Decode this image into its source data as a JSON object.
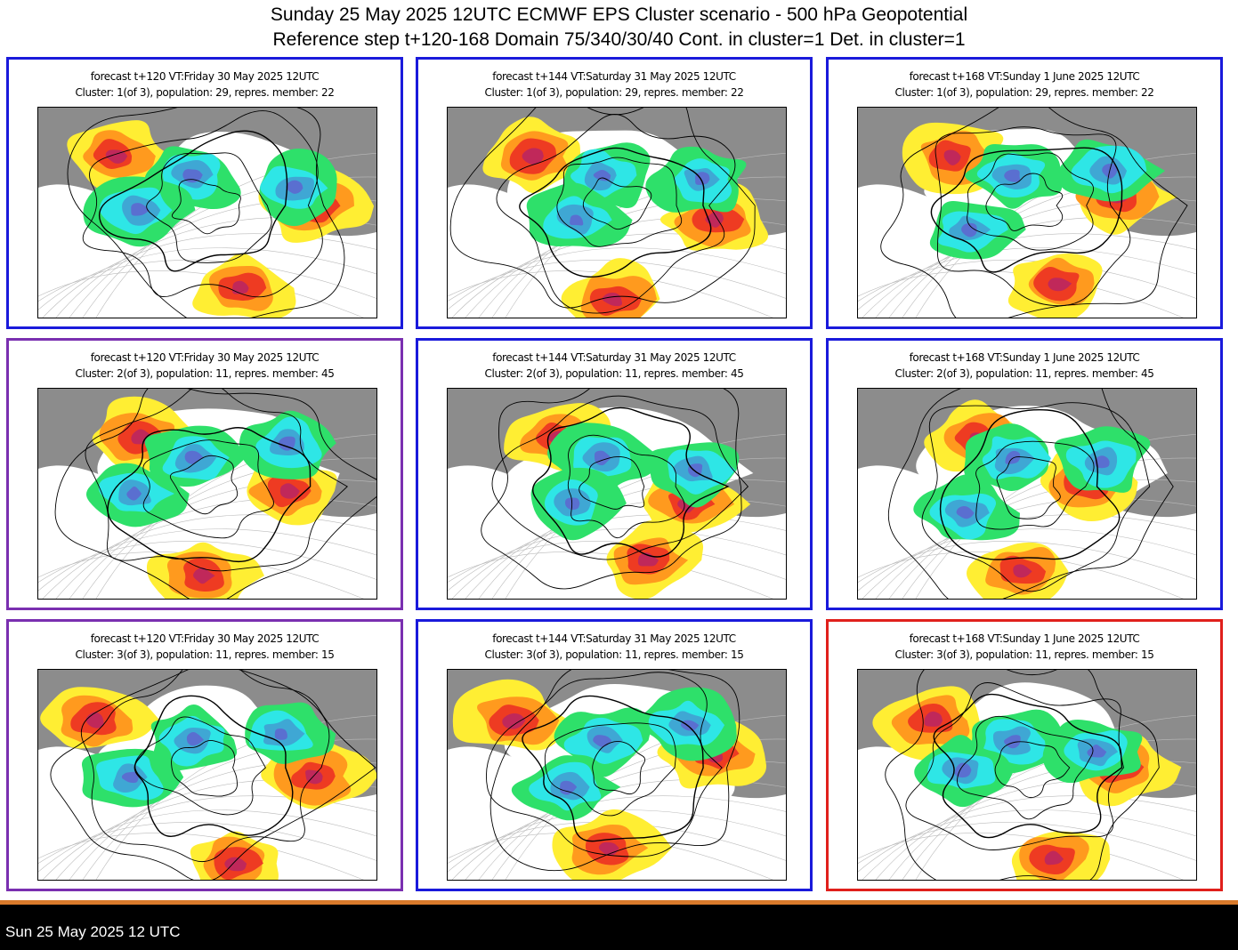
{
  "header": {
    "title": "Sunday 25 May 2025 12UTC ECMWF EPS Cluster scenario - 500 hPa Geopotential",
    "subtitle": "Reference step t+120-168 Domain 75/340/30/40 Cont. in cluster=1 Det. in cluster=1"
  },
  "colors": {
    "frame_blue": "#1a1adb",
    "frame_purple": "#7a2fb0",
    "frame_red": "#e0201c",
    "land": "#8c8c8c",
    "ocean": "#ffffff",
    "neg_light": "#2ee06a",
    "neg_mid": "#2ee6e6",
    "neg_strong": "#3fa7d4",
    "neg_max": "#5a6fd0",
    "pos_light": "#ffee33",
    "pos_mid": "#ff9a1e",
    "pos_strong": "#ee3b22",
    "pos_max": "#c0285a",
    "footer_accent": "#d97a2b"
  },
  "panels": [
    {
      "line1": "forecast t+120 VT:Friday 30 May 2025 12UTC",
      "line2": "Cluster: 1(of 3), population: 29, repres. member: 22",
      "frame": "blue",
      "step": 120,
      "cluster": 1
    },
    {
      "line1": "forecast t+144 VT:Saturday 31 May 2025 12UTC",
      "line2": "Cluster: 1(of 3), population: 29, repres. member: 22",
      "frame": "blue",
      "step": 144,
      "cluster": 1
    },
    {
      "line1": "forecast t+168 VT:Sunday 1 June 2025 12UTC",
      "line2": "Cluster: 1(of 3), population: 29, repres. member: 22",
      "frame": "blue",
      "step": 168,
      "cluster": 1
    },
    {
      "line1": "forecast t+120 VT:Friday 30 May 2025 12UTC",
      "line2": "Cluster: 2(of 3), population: 11, repres. member: 45",
      "frame": "purple",
      "step": 120,
      "cluster": 2
    },
    {
      "line1": "forecast t+144 VT:Saturday 31 May 2025 12UTC",
      "line2": "Cluster: 2(of 3), population: 11, repres. member: 45",
      "frame": "blue",
      "step": 144,
      "cluster": 2
    },
    {
      "line1": "forecast t+168 VT:Sunday 1 June 2025 12UTC",
      "line2": "Cluster: 2(of 3), population: 11, repres. member: 45",
      "frame": "blue",
      "step": 168,
      "cluster": 2
    },
    {
      "line1": "forecast t+120 VT:Friday 30 May 2025 12UTC",
      "line2": "Cluster: 3(of 3), population: 11, repres. member: 15",
      "frame": "purple",
      "step": 120,
      "cluster": 3
    },
    {
      "line1": "forecast t+144 VT:Saturday 31 May 2025 12UTC",
      "line2": "Cluster: 3(of 3), population: 11, repres. member: 15",
      "frame": "blue",
      "step": 144,
      "cluster": 3
    },
    {
      "line1": "forecast t+168 VT:Sunday 1 June 2025 12UTC",
      "line2": "Cluster: 3(of 3), population: 11, repres. member: 15",
      "frame": "red",
      "step": 168,
      "cluster": 3
    }
  ],
  "footer": {
    "text": "Sun 25 May 2025 12 UTC"
  }
}
